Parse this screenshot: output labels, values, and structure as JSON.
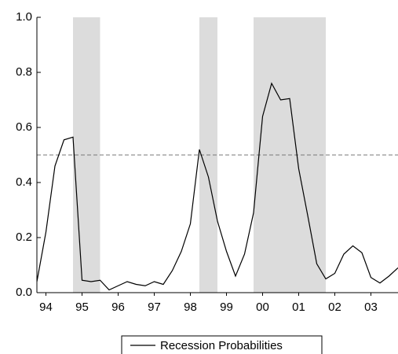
{
  "chart_data": {
    "type": "line",
    "x": [
      1994.25,
      1994.5,
      1994.75,
      1995,
      1995.25,
      1995.5,
      1995.75,
      1996,
      1996.25,
      1996.5,
      1996.75,
      1997,
      1997.25,
      1997.5,
      1997.75,
      1998,
      1998.25,
      1998.5,
      1998.75,
      1999,
      1999.25,
      1999.5,
      1999.75,
      2000,
      2000.25,
      2000.5,
      2000.75,
      2001,
      2001.25,
      2001.5,
      2001.75,
      2002,
      2002.25,
      2002.5,
      2002.75,
      2003,
      2003.25,
      2003.5,
      2003.75,
      2004,
      2004.25
    ],
    "series": [
      {
        "name": "Recession Probabilities",
        "color": "#000000",
        "values": [
          0.04,
          0.22,
          0.46,
          0.555,
          0.565,
          0.045,
          0.04,
          0.045,
          0.01,
          0.025,
          0.04,
          0.03,
          0.025,
          0.04,
          0.03,
          0.08,
          0.15,
          0.25,
          0.52,
          0.42,
          0.26,
          0.15,
          0.06,
          0.14,
          0.29,
          0.64,
          0.76,
          0.7,
          0.705,
          0.45,
          0.28,
          0.105,
          0.05,
          0.07,
          0.14,
          0.17,
          0.145,
          0.055,
          0.035,
          0.06,
          0.09
        ]
      }
    ],
    "shaded_periods": [
      [
        1995.25,
        1996.0
      ],
      [
        1998.75,
        1999.25
      ],
      [
        2000.25,
        2002.25
      ]
    ],
    "shade_color": "#dcdcdc",
    "reference_line": 0.5,
    "xlim": [
      1994.25,
      2004.25
    ],
    "xticks": [
      {
        "value": 1994.5,
        "label": "94"
      },
      {
        "value": 1995.5,
        "label": "95"
      },
      {
        "value": 1996.5,
        "label": "96"
      },
      {
        "value": 1997.5,
        "label": "97"
      },
      {
        "value": 1998.5,
        "label": "98"
      },
      {
        "value": 1999.5,
        "label": "99"
      },
      {
        "value": 2000.5,
        "label": "00"
      },
      {
        "value": 2001.5,
        "label": "01"
      },
      {
        "value": 2002.5,
        "label": "02"
      },
      {
        "value": 2003.5,
        "label": "03"
      }
    ],
    "ylim": [
      0,
      1
    ],
    "yticks": [
      {
        "value": 0,
        "label": "0.0"
      },
      {
        "value": 0.2,
        "label": "0.2"
      },
      {
        "value": 0.4,
        "label": "0.4"
      },
      {
        "value": 0.6,
        "label": "0.6"
      },
      {
        "value": 0.8,
        "label": "0.8"
      },
      {
        "value": 1,
        "label": "1.0"
      }
    ],
    "legend": "bottom"
  }
}
